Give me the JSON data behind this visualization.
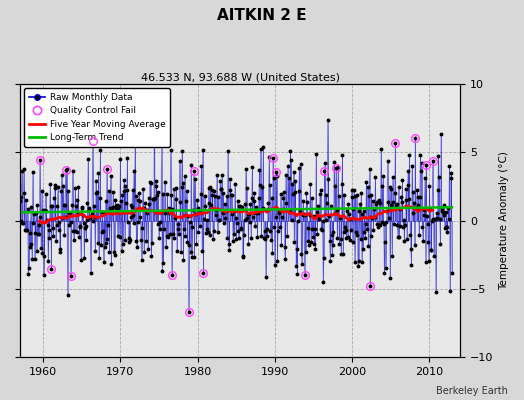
{
  "title": "AITKIN 2 E",
  "subtitle": "46.533 N, 93.688 W (United States)",
  "credit": "Berkeley Earth",
  "ylabel": "Temperature Anomaly (°C)",
  "ylim": [
    -10,
    10
  ],
  "xlim": [
    1957,
    2014
  ],
  "xticks": [
    1960,
    1970,
    1980,
    1990,
    2000,
    2010
  ],
  "yticks": [
    -10,
    -5,
    0,
    5,
    10
  ],
  "bg_color": "#d8d8d8",
  "plot_bg_color": "#e8e8e8",
  "raw_line_color": "#0000cc",
  "raw_dot_color": "#000000",
  "qc_fail_color": "#ff44ff",
  "moving_avg_color": "#ff0000",
  "trend_color": "#00bb00",
  "seed": 42,
  "start_year": 1957,
  "n_months": 672
}
